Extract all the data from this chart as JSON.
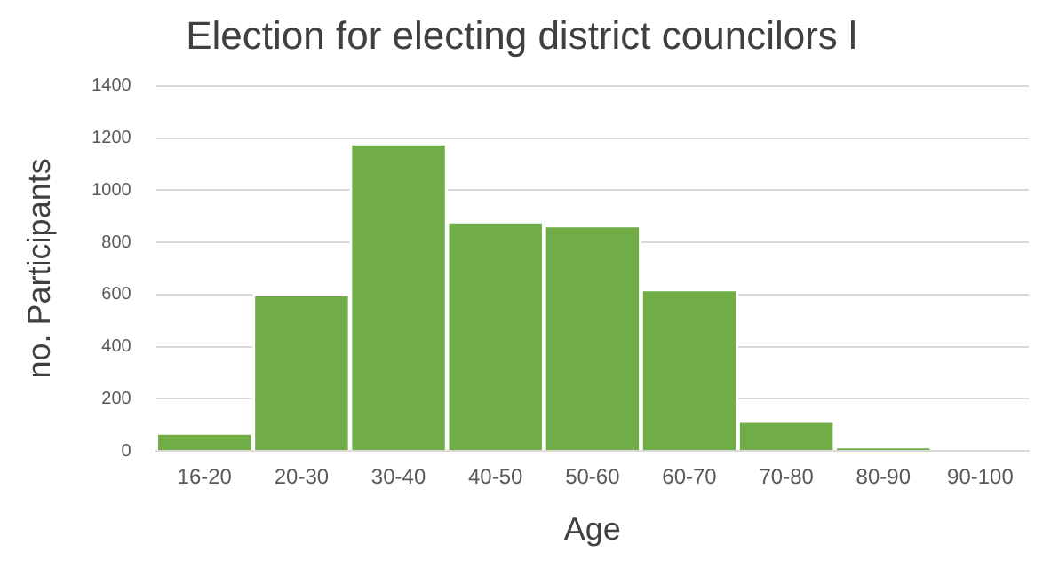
{
  "chart_data": {
    "type": "bar",
    "title": "Election for electing district councilors l",
    "xlabel": "Age",
    "ylabel": "no. Participants",
    "categories": [
      "16-20",
      "20-30",
      "30-40",
      "40-50",
      "50-60",
      "60-70",
      "70-80",
      "80-90",
      "90-100"
    ],
    "values": [
      70,
      600,
      1180,
      880,
      865,
      620,
      115,
      10,
      0
    ],
    "color": "#70ad47",
    "ylim": [
      0,
      1400
    ],
    "yticks": [
      0,
      200,
      400,
      600,
      800,
      1000,
      1200,
      1400
    ],
    "grid": "y",
    "legend": false
  }
}
